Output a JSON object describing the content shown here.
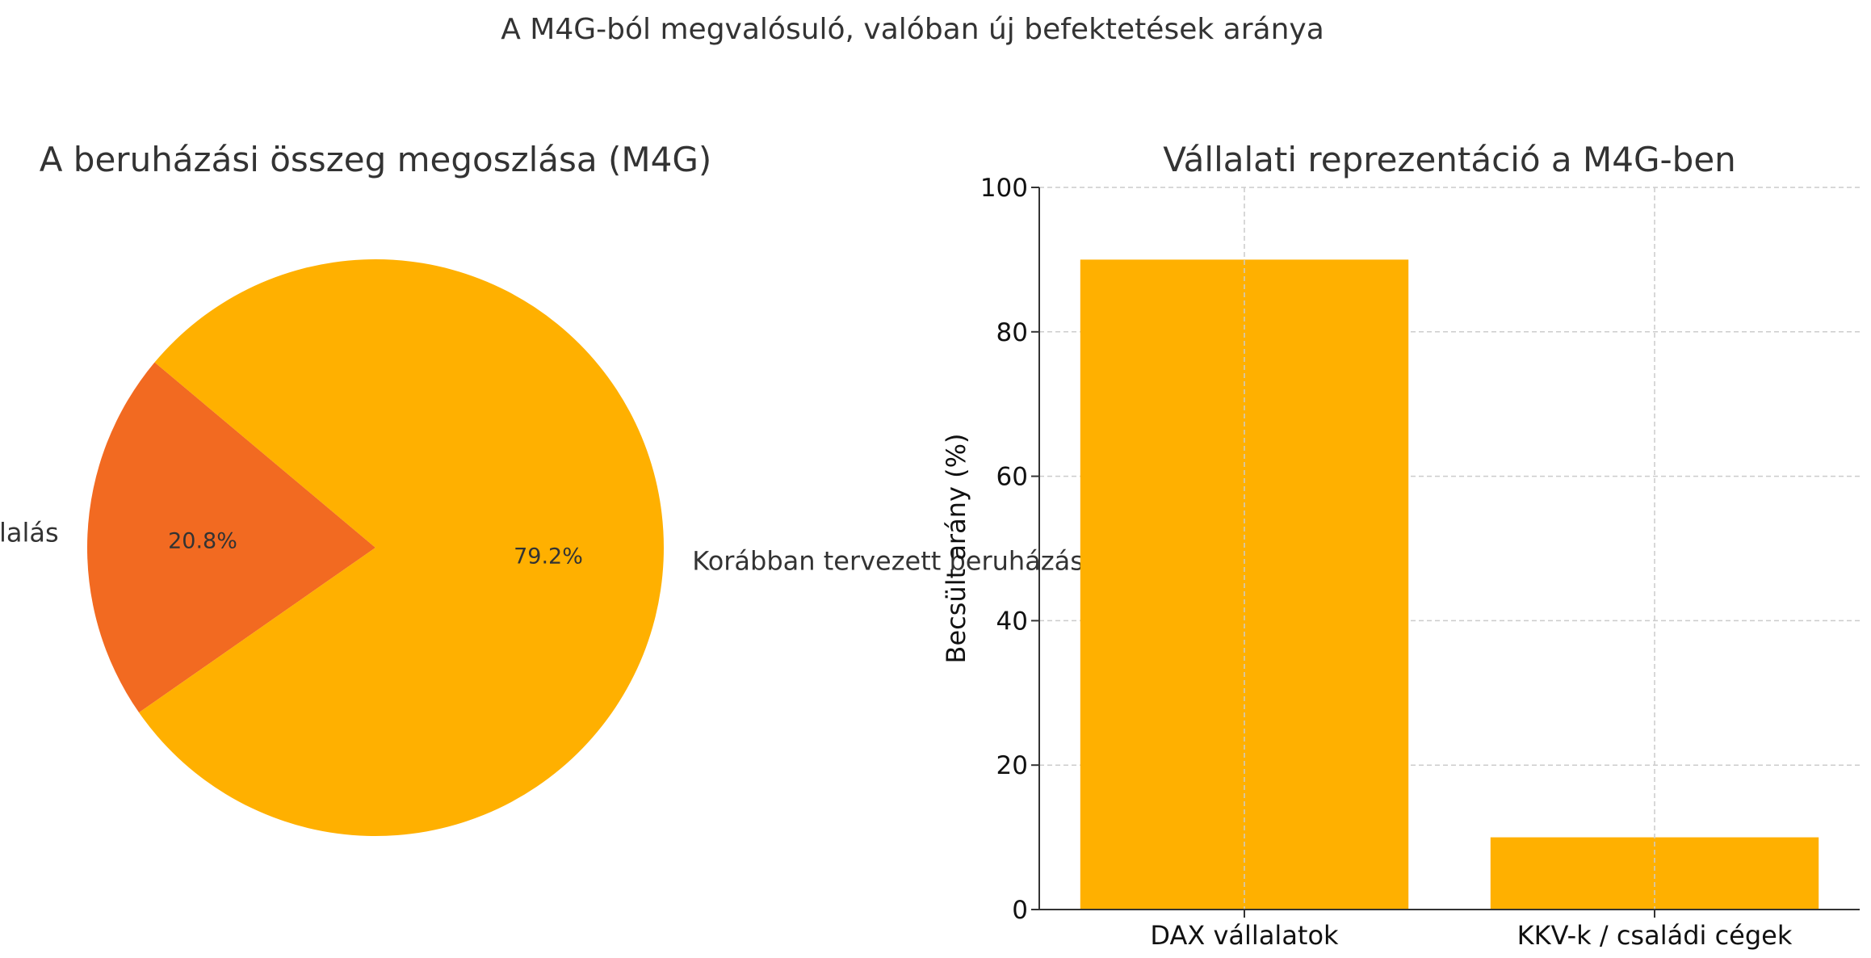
{
  "figure": {
    "suptitle": "A M4G-ból megvalósuló, valóban új befektetések aránya"
  },
  "chart_data": [
    {
      "type": "pie",
      "title": "A beruházási összeg megoszlása (M4G)",
      "slices": [
        {
          "label": "Új vállalás",
          "value": 20.8,
          "pct_label": "20.8%",
          "color": "#F26A21"
        },
        {
          "label": "Korábban tervezett beruházás",
          "value": 79.2,
          "pct_label": "79.2%",
          "color": "#FFB000"
        }
      ],
      "start_angle_deg": 140,
      "direction": "counterclockwise"
    },
    {
      "type": "bar",
      "title": "Vállalati reprezentáció a M4G-ben",
      "categories": [
        "DAX vállalatok",
        "KKV-k / családi cégek"
      ],
      "values": [
        90,
        10
      ],
      "color": "#FFB000",
      "xlabel": "",
      "ylabel": "Becsült arány (%)",
      "ylim": [
        0,
        100
      ],
      "yticks": [
        0,
        20,
        40,
        60,
        80,
        100
      ],
      "grid": true
    }
  ]
}
